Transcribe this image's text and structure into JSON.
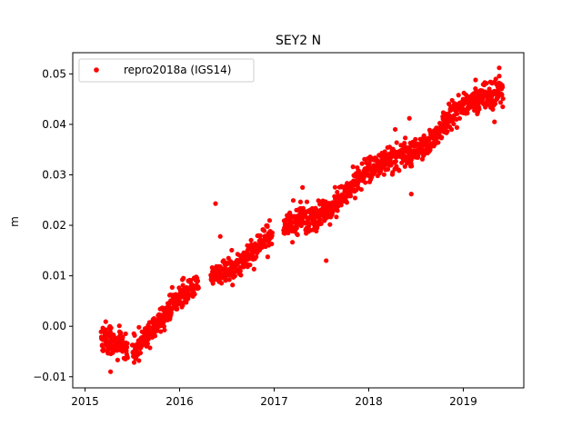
{
  "chart_data": {
    "type": "scatter",
    "title": "SEY2 N",
    "xlabel": "",
    "ylabel": "m",
    "xlim": [
      2014.87,
      2019.64
    ],
    "ylim": [
      -0.0122,
      0.0542
    ],
    "x_ticks": [
      2015,
      2016,
      2017,
      2018,
      2019
    ],
    "y_ticks": [
      -0.01,
      0.0,
      0.01,
      0.02,
      0.03,
      0.04,
      0.05
    ],
    "y_tick_labels": [
      "−0.01",
      "0.00",
      "0.01",
      "0.02",
      "0.03",
      "0.04",
      "0.05"
    ],
    "grid": false,
    "legend": {
      "position": "top-left",
      "entries": [
        "repro2018a (IGS14)"
      ]
    },
    "colors": {
      "series": "#ff0000",
      "axes": "#000000",
      "background": "#ffffff"
    },
    "series": [
      {
        "name": "repro2018a (IGS14)",
        "marker": "dot",
        "segments": [
          {
            "x_start": 2015.17,
            "x_end": 2015.45,
            "trend_start": -0.0035,
            "trend_end": -0.003,
            "spread": 0.0028,
            "n": 110
          },
          {
            "x_start": 2015.5,
            "x_end": 2016.2,
            "trend_start": -0.0035,
            "trend_end": 0.008,
            "spread": 0.0024,
            "n": 260
          },
          {
            "x_start": 2016.33,
            "x_end": 2016.98,
            "trend_start": 0.0105,
            "trend_end": 0.017,
            "spread": 0.0024,
            "n": 230
          },
          {
            "x_start": 2017.1,
            "x_end": 2019.42,
            "trend_start": 0.0185,
            "trend_end": 0.0475,
            "spread": 0.0026,
            "n": 820
          }
        ],
        "outliers": [
          {
            "x": 2016.38,
            "y": 0.0243
          },
          {
            "x": 2016.43,
            "y": 0.0178
          },
          {
            "x": 2015.27,
            "y": -0.009
          },
          {
            "x": 2015.57,
            "y": -0.0068
          },
          {
            "x": 2017.3,
            "y": 0.0275
          },
          {
            "x": 2017.55,
            "y": 0.013
          },
          {
            "x": 2018.28,
            "y": 0.039
          },
          {
            "x": 2018.43,
            "y": 0.0412
          },
          {
            "x": 2018.45,
            "y": 0.0262
          },
          {
            "x": 2019.13,
            "y": 0.0488
          },
          {
            "x": 2019.38,
            "y": 0.0512
          },
          {
            "x": 2019.33,
            "y": 0.0405
          }
        ]
      }
    ]
  }
}
